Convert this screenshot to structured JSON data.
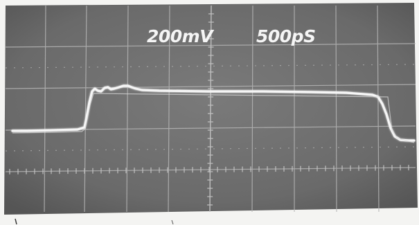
{
  "scope": {
    "volts_per_div": "200mV",
    "time_per_div": "500pS"
  },
  "colors": {
    "screen": "#707070",
    "graticule": "#b8b8b8",
    "trace": "#f6f6f6",
    "label": "#f5f5f5",
    "paper": "#f4f4f2"
  }
}
